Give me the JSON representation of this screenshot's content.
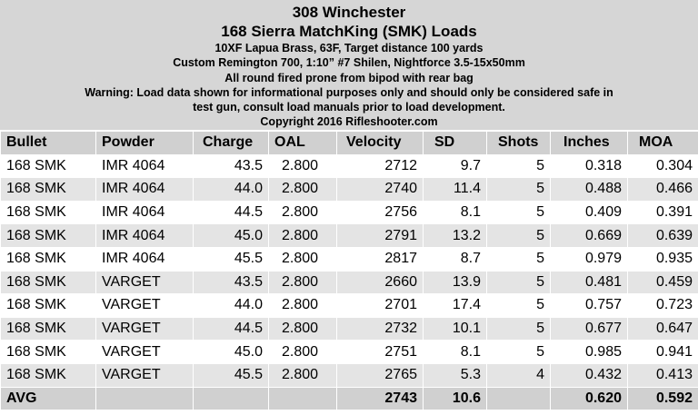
{
  "header": {
    "title": "308 Winchester",
    "subtitle": "168 Sierra MatchKing (SMK) Loads",
    "lines": [
      "10XF Lapua Brass, 63F, Target distance 100 yards",
      "Custom Remington 700, 1:10” #7 Shilen, Nightforce 3.5-15x50mm",
      "All round fired prone from bipod with rear bag",
      "Warning: Load data shown for informational purposes only and should only be considered safe in",
      "test gun, consult load manuals prior to load development.",
      "Copyright 2016 Rifleshooter.com"
    ]
  },
  "table": {
    "columns": [
      "Bullet",
      "Powder",
      "Charge",
      "OAL",
      "Velocity",
      "SD",
      "Shots",
      "Inches",
      "MOA"
    ],
    "rows": [
      [
        "168 SMK",
        "IMR 4064",
        "43.5",
        "2.800",
        "2712",
        "9.7",
        "5",
        "0.318",
        "0.304"
      ],
      [
        "168 SMK",
        "IMR 4064",
        "44.0",
        "2.800",
        "2740",
        "11.4",
        "5",
        "0.488",
        "0.466"
      ],
      [
        "168 SMK",
        "IMR 4064",
        "44.5",
        "2.800",
        "2756",
        "8.1",
        "5",
        "0.409",
        "0.391"
      ],
      [
        "168 SMK",
        "IMR 4064",
        "45.0",
        "2.800",
        "2791",
        "13.2",
        "5",
        "0.669",
        "0.639"
      ],
      [
        "168 SMK",
        "IMR 4064",
        "45.5",
        "2.800",
        "2817",
        "8.7",
        "5",
        "0.979",
        "0.935"
      ],
      [
        "168 SMK",
        "VARGET",
        "43.5",
        "2.800",
        "2660",
        "13.9",
        "5",
        "0.481",
        "0.459"
      ],
      [
        "168 SMK",
        "VARGET",
        "44.0",
        "2.800",
        "2701",
        "17.4",
        "5",
        "0.757",
        "0.723"
      ],
      [
        "168 SMK",
        "VARGET",
        "44.5",
        "2.800",
        "2732",
        "10.1",
        "5",
        "0.677",
        "0.647"
      ],
      [
        "168 SMK",
        "VARGET",
        "45.0",
        "2.800",
        "2751",
        "8.1",
        "5",
        "0.985",
        "0.941"
      ],
      [
        "168 SMK",
        "VARGET",
        "45.5",
        "2.800",
        "2765",
        "5.3",
        "4",
        "0.432",
        "0.413"
      ]
    ],
    "summary": [
      "AVG",
      null,
      null,
      null,
      "2743",
      "10.6",
      null,
      "0.620",
      "0.592"
    ]
  }
}
